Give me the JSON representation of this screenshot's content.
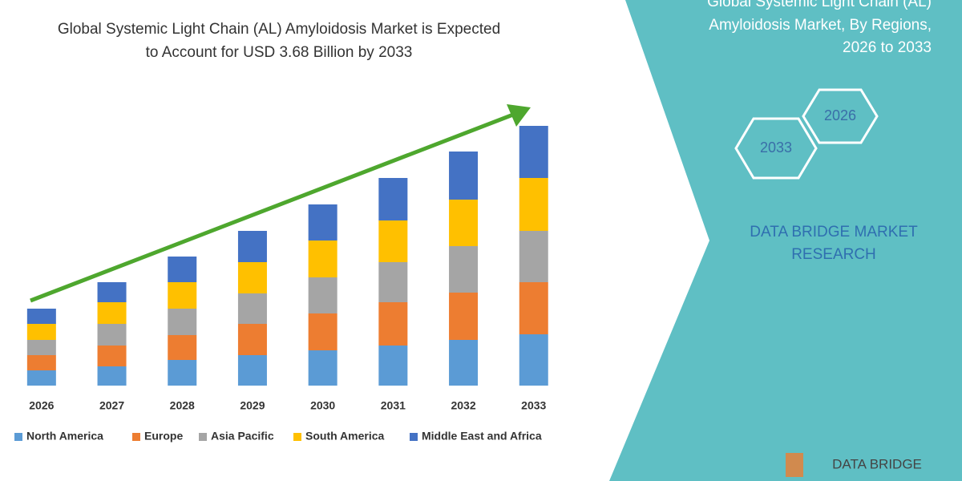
{
  "chart_data": {
    "type": "bar",
    "stacked": true,
    "title": [
      "Global Systemic Light Chain (AL) Amyloidosis Market is Expected",
      "to Account for USD 3.68 Billion by 2033"
    ],
    "categories": [
      "2026",
      "2027",
      "2028",
      "2029",
      "2030",
      "2031",
      "2032",
      "2033"
    ],
    "series": [
      {
        "name": "North America",
        "color": "#5b9bd5",
        "values": [
          19,
          24,
          32,
          38,
          44,
          50,
          57,
          64
        ]
      },
      {
        "name": "Europe",
        "color": "#ed7d31",
        "values": [
          19,
          26,
          31,
          39,
          46,
          54,
          59,
          65
        ]
      },
      {
        "name": "Asia Pacific",
        "color": "#a5a5a5",
        "values": [
          19,
          27,
          33,
          38,
          45,
          50,
          58,
          64
        ]
      },
      {
        "name": "South America",
        "color": "#ffc000",
        "values": [
          20,
          27,
          33,
          39,
          46,
          52,
          58,
          66
        ]
      },
      {
        "name": "Middle East and Africa",
        "color": "#4472c4",
        "values": [
          19,
          25,
          32,
          39,
          45,
          53,
          60,
          65
        ]
      }
    ],
    "ylim": [
      0,
      330
    ],
    "grid": false,
    "trend_arrow_color": "#4ea72e"
  },
  "panel": {
    "title": [
      "Global Systemic Light Chain (AL)",
      "Amyloidosis Market, By Regions,",
      "2026 to 2033"
    ],
    "hexagons": [
      "2026",
      "2033"
    ],
    "company": [
      "DATA BRIDGE MARKET",
      "RESEARCH"
    ],
    "logo": "DATA BRIDGE"
  }
}
